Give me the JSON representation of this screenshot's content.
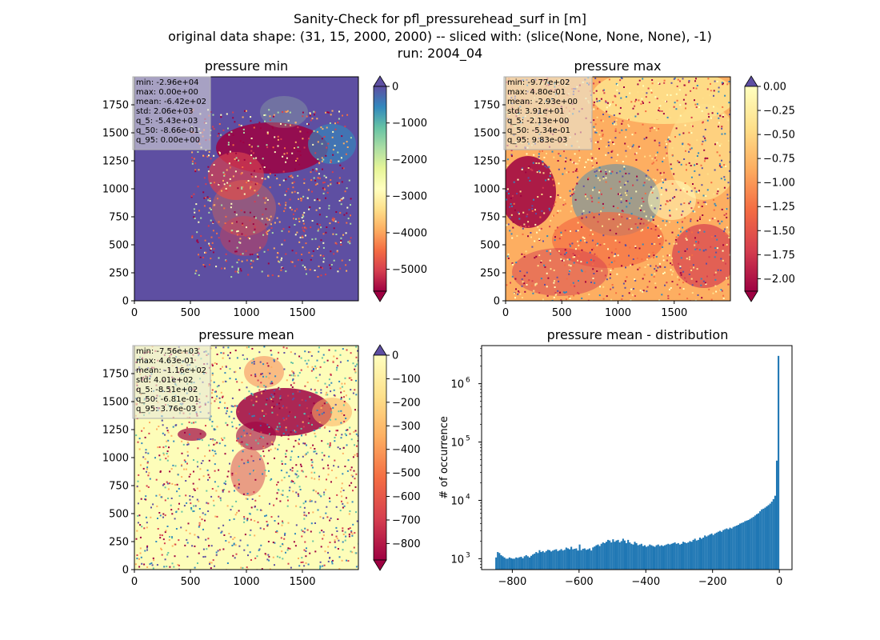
{
  "figure": {
    "title_lines": [
      "Sanity-Check for pfl_pressurehead_surf in [m]",
      "original data shape: (31, 15, 2000, 2000) -- sliced with: (slice(None, None, None), -1)",
      "run: 2004_04"
    ]
  },
  "chart_data": [
    {
      "type": "heatmap",
      "title": "pressure min",
      "xlim": [
        0,
        2000
      ],
      "ylim": [
        0,
        2000
      ],
      "xticks": [
        "0",
        "500",
        "1000",
        "1500"
      ],
      "yticks": [
        "0",
        "250",
        "500",
        "750",
        "1000",
        "1250",
        "1500",
        "1750"
      ],
      "stats": [
        "min: -2.96e+04",
        "max: 0.00e+00",
        "mean: -6.42e+02",
        "std: 2.06e+03",
        "q_5: -5.43e+03",
        "q_50: -8.66e-01",
        "q_95: 0.00e+00"
      ],
      "colorbar": {
        "range": [
          -5600,
          0
        ],
        "ticks": [
          "0",
          "−1000",
          "−2000",
          "−3000",
          "−4000",
          "−5000"
        ],
        "extend": "both",
        "colormap": "Spectral",
        "ext_low_color": "#9e0142",
        "ext_high_color": "#5e4fa2"
      },
      "background_color": "#5e4fa2"
    },
    {
      "type": "heatmap",
      "title": "pressure max",
      "xlim": [
        0,
        2000
      ],
      "ylim": [
        0,
        2000
      ],
      "xticks": [
        "0",
        "500",
        "1000",
        "1500"
      ],
      "yticks": [
        "0",
        "250",
        "500",
        "750",
        "1000",
        "1250",
        "1500",
        "1750"
      ],
      "stats": [
        "min: -9.77e+02",
        "max: 4.80e-01",
        "mean: -2.93e+00",
        "std: 3.91e+01",
        "q_5: -2.13e+00",
        "q_50: -5.34e-01",
        "q_95: 9.83e-03"
      ],
      "colorbar": {
        "range": [
          -2.13,
          0.0
        ],
        "ticks": [
          "0.00",
          "−0.25",
          "−0.50",
          "−0.75",
          "−1.00",
          "−1.25",
          "−1.50",
          "−1.75",
          "−2.00"
        ],
        "extend": "both",
        "colormap": "Spectral",
        "ext_low_color": "#9e0142",
        "ext_high_color": "#5e4fa2"
      },
      "background_color": "#fdbf6f"
    },
    {
      "type": "heatmap",
      "title": "pressure mean",
      "xlim": [
        0,
        2000
      ],
      "ylim": [
        0,
        2000
      ],
      "xticks": [
        "0",
        "500",
        "1000",
        "1500"
      ],
      "yticks": [
        "0",
        "250",
        "500",
        "750",
        "1000",
        "1250",
        "1500",
        "1750"
      ],
      "stats": [
        "min: -7.56e+03",
        "max: 4.63e-01",
        "mean: -1.16e+02",
        "std: 4.01e+02",
        "q_5: -8.51e+02",
        "q_50: -6.81e-01",
        "q_95: 3.76e-03"
      ],
      "colorbar": {
        "range": [
          -870,
          0
        ],
        "ticks": [
          "0",
          "−100",
          "−200",
          "−300",
          "−400",
          "−500",
          "−600",
          "−700",
          "−800"
        ],
        "extend": "both",
        "colormap": "Spectral",
        "ext_low_color": "#9e0142",
        "ext_high_color": "#5e4fa2"
      },
      "background_color": "#fdfdb9"
    },
    {
      "type": "bar",
      "title": "pressure mean - distribution",
      "ylabel": "# of occurrence",
      "xlabel": "",
      "yscale": "log",
      "xlim": [
        -892,
        38
      ],
      "ylim": [
        650,
        4500000
      ],
      "xticks": [
        "−800",
        "−600",
        "−400",
        "−200",
        "0"
      ],
      "ytick_bases": [
        "10",
        "10",
        "10",
        "10"
      ],
      "ytick_exponents": [
        "3",
        "4",
        "5",
        "6"
      ],
      "bar_color": "#1f77b4",
      "bins": {
        "start": -851,
        "end": 0,
        "count": 170,
        "values": [
          1050,
          1300,
          1250,
          1150,
          1100,
          1050,
          1000,
          1000,
          1050,
          1020,
          1000,
          1000,
          1050,
          1030,
          1060,
          1080,
          1020,
          1100,
          1150,
          1100,
          1050,
          1120,
          1180,
          1220,
          1300,
          1250,
          1400,
          1300,
          1350,
          1280,
          1350,
          1420,
          1400,
          1330,
          1380,
          1420,
          1450,
          1350,
          1400,
          1460,
          1380,
          1420,
          1550,
          1500,
          1450,
          1600,
          1450,
          1480,
          1500,
          1380,
          1750,
          1400,
          1480,
          1500,
          1420,
          1450,
          1500,
          1380,
          1560,
          1620,
          1700,
          1750,
          1650,
          1800,
          1900,
          1850,
          1950,
          2100,
          2050,
          1900,
          2150,
          1950,
          2050,
          2100,
          1900,
          2000,
          2200,
          2050,
          1850,
          2100,
          1900,
          1800,
          1750,
          1950,
          1850,
          1700,
          1750,
          1800,
          1650,
          1700,
          1600,
          1650,
          1750,
          1700,
          1650,
          1600,
          1700,
          1750,
          1650,
          1700,
          1650,
          1700,
          1750,
          1800,
          1750,
          1800,
          1850,
          1900,
          1800,
          1850,
          1750,
          1800,
          1950,
          1900,
          1850,
          1900,
          2000,
          1950,
          2100,
          2200,
          2050,
          2100,
          2300,
          2200,
          2300,
          2500,
          2400,
          2500,
          2600,
          2700,
          2550,
          2700,
          2800,
          2900,
          3000,
          2900,
          3100,
          3200,
          3300,
          3200,
          3400,
          3300,
          3500,
          3600,
          3700,
          3800,
          4000,
          4100,
          4200,
          4400,
          4500,
          4600,
          4800,
          5000,
          5200,
          5500,
          5800,
          6000,
          6500,
          7000,
          7200,
          7500,
          7900,
          8300,
          8800,
          9500,
          10500,
          12000,
          48000,
          3000000
        ]
      }
    }
  ]
}
